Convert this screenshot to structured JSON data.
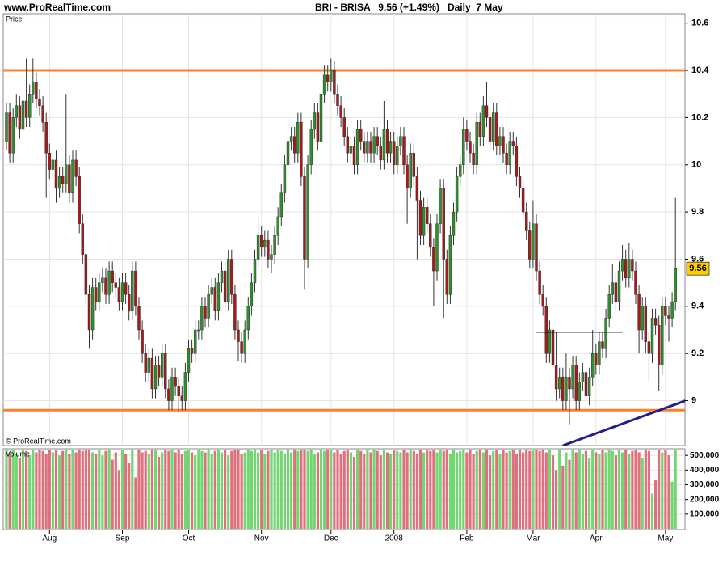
{
  "chart_data": {
    "type": "candlestick",
    "site_label": "www.ProRealTime.com",
    "title": "BRI - BRISA   9.56 (+1.49%)   Daily  7 May",
    "price_label": "Price",
    "copyright": "© ProRealTime.com",
    "volume_label": "Volume",
    "categories": [
      null,
      null,
      null,
      null,
      null,
      null,
      null,
      null,
      null,
      null,
      null,
      null,
      null,
      "Aug",
      null,
      null,
      null,
      null,
      null,
      null,
      null,
      null,
      null,
      null,
      null,
      null,
      null,
      null,
      null,
      null,
      null,
      null,
      null,
      null,
      null,
      "Sep",
      null,
      null,
      null,
      null,
      null,
      null,
      null,
      null,
      null,
      null,
      null,
      null,
      null,
      null,
      null,
      null,
      null,
      null,
      null,
      "Oct",
      null,
      null,
      null,
      null,
      null,
      null,
      null,
      null,
      null,
      null,
      null,
      null,
      null,
      null,
      null,
      null,
      null,
      null,
      null,
      null,
      null,
      "Nov",
      null,
      null,
      null,
      null,
      null,
      null,
      null,
      null,
      null,
      null,
      null,
      null,
      null,
      null,
      null,
      null,
      null,
      null,
      null,
      null,
      "Dec",
      null,
      null,
      null,
      null,
      null,
      null,
      null,
      null,
      null,
      null,
      null,
      null,
      null,
      null,
      null,
      null,
      null,
      null,
      "2008",
      null,
      null,
      null,
      null,
      null,
      null,
      null,
      null,
      null,
      null,
      null,
      null,
      null,
      null,
      null,
      null,
      null,
      null,
      null,
      null,
      null,
      "Feb",
      null,
      null,
      null,
      null,
      null,
      null,
      null,
      null,
      null,
      null,
      null,
      null,
      null,
      null,
      null,
      null,
      null,
      null,
      null,
      "Mar",
      null,
      null,
      null,
      null,
      null,
      null,
      null,
      null,
      null,
      null,
      null,
      null,
      null,
      null,
      null,
      null,
      null,
      null,
      "Apr",
      null,
      null,
      null,
      null,
      null,
      null,
      null,
      null,
      null,
      null,
      null,
      null,
      null,
      null,
      null,
      null,
      null,
      null,
      null,
      null,
      "May",
      null,
      null,
      null
    ],
    "open": [
      10.1,
      10.22,
      10.05,
      10.2,
      10.25,
      10.15,
      10.27,
      10.2,
      10.3,
      10.35,
      10.28,
      10.25,
      10.18,
      10.05,
      9.98,
      10.02,
      9.9,
      9.95,
      9.92,
      10.0,
      9.88,
      10.02,
      9.95,
      9.75,
      9.62,
      9.45,
      9.3,
      9.48,
      9.42,
      9.5,
      9.52,
      9.45,
      9.55,
      9.5,
      9.48,
      9.42,
      9.5,
      9.45,
      9.38,
      9.55,
      9.4,
      9.3,
      9.2,
      9.12,
      9.18,
      9.05,
      9.15,
      9.1,
      9.2,
      9.05,
      9.0,
      9.1,
      9.06,
      9.02,
      9.0,
      9.12,
      9.22,
      9.2,
      9.3,
      9.3,
      9.4,
      9.35,
      9.45,
      9.48,
      9.38,
      9.5,
      9.55,
      9.42,
      9.6,
      9.45,
      9.3,
      9.25,
      9.2,
      9.3,
      9.4,
      9.5,
      9.6,
      9.7,
      9.65,
      9.68,
      9.6,
      9.62,
      9.7,
      9.78,
      9.88,
      10.0,
      10.1,
      10.12,
      10.05,
      10.18,
      9.95,
      9.6,
      10.0,
      10.15,
      10.22,
      10.1,
      10.3,
      10.38,
      10.35,
      10.4,
      10.3,
      10.25,
      10.2,
      10.12,
      10.05,
      10.08,
      10.0,
      10.15,
      10.1,
      10.05,
      10.1,
      10.05,
      10.12,
      10.08,
      10.02,
      10.15,
      10.05,
      10.1,
      10.0,
      10.08,
      10.12,
      10.0,
      9.9,
      10.05,
      9.95,
      9.85,
      9.7,
      9.82,
      9.75,
      9.65,
      9.55,
      9.75,
      9.9,
      9.6,
      9.45,
      9.7,
      9.8,
      9.95,
      10.0,
      10.15,
      10.1,
      10.05,
      10.0,
      10.18,
      10.12,
      10.25,
      10.2,
      10.1,
      10.22,
      10.08,
      10.12,
      10.05,
      10.0,
      10.1,
      10.08,
      9.95,
      9.9,
      9.8,
      9.72,
      9.6,
      9.75,
      9.55,
      9.45,
      9.4,
      9.2,
      9.3,
      9.15,
      9.05,
      9.1,
      9.0,
      9.1,
      9.05,
      9.15,
      9.0,
      9.08,
      9.12,
      9.02,
      9.1,
      9.2,
      9.15,
      9.25,
      9.22,
      9.35,
      9.45,
      9.5,
      9.42,
      9.55,
      9.6,
      9.52,
      9.6,
      9.55,
      9.45,
      9.3,
      9.4,
      9.25,
      9.2,
      9.35,
      9.32,
      9.15,
      9.4,
      9.36,
      9.35,
      9.42
    ],
    "high": [
      10.26,
      10.26,
      10.24,
      10.3,
      10.29,
      10.31,
      10.45,
      10.34,
      10.45,
      10.39,
      10.32,
      10.29,
      10.22,
      10.09,
      10.06,
      10.06,
      9.99,
      9.99,
      10.3,
      10.04,
      10.06,
      10.06,
      9.99,
      9.79,
      9.66,
      9.49,
      9.52,
      9.52,
      9.54,
      9.56,
      9.56,
      9.59,
      9.59,
      9.54,
      9.52,
      9.54,
      9.54,
      9.49,
      9.59,
      9.59,
      9.44,
      9.34,
      9.24,
      9.22,
      9.22,
      9.19,
      9.19,
      9.24,
      9.24,
      9.09,
      9.14,
      9.14,
      9.1,
      9.06,
      9.16,
      9.26,
      9.26,
      9.34,
      9.34,
      9.44,
      9.44,
      9.49,
      9.52,
      9.52,
      9.54,
      9.59,
      9.59,
      9.64,
      9.64,
      9.49,
      9.34,
      9.29,
      9.34,
      9.44,
      9.54,
      9.64,
      9.78,
      9.74,
      9.72,
      9.72,
      9.66,
      9.74,
      9.82,
      9.92,
      10.04,
      10.2,
      10.16,
      10.16,
      10.22,
      10.22,
      9.99,
      10.04,
      10.19,
      10.26,
      10.26,
      10.34,
      10.42,
      10.42,
      10.45,
      10.44,
      10.34,
      10.29,
      10.24,
      10.16,
      10.12,
      10.12,
      10.19,
      10.19,
      10.14,
      10.14,
      10.14,
      10.16,
      10.16,
      10.12,
      10.27,
      10.19,
      10.14,
      10.14,
      10.12,
      10.16,
      10.16,
      10.04,
      10.09,
      10.09,
      9.99,
      9.89,
      9.86,
      9.86,
      9.79,
      9.69,
      9.79,
      9.94,
      9.94,
      9.64,
      9.74,
      9.84,
      9.99,
      10.04,
      10.2,
      10.19,
      10.14,
      10.09,
      10.22,
      10.22,
      10.29,
      10.35,
      10.24,
      10.26,
      10.26,
      10.16,
      10.16,
      10.09,
      10.14,
      10.14,
      10.12,
      9.99,
      9.94,
      9.84,
      9.76,
      9.85,
      9.79,
      9.59,
      9.49,
      9.44,
      9.34,
      9.34,
      9.29,
      9.14,
      9.14,
      9.2,
      9.14,
      9.19,
      9.19,
      9.12,
      9.16,
      9.16,
      9.14,
      9.3,
      9.24,
      9.29,
      9.29,
      9.39,
      9.49,
      9.58,
      9.54,
      9.59,
      9.66,
      9.64,
      9.67,
      9.64,
      9.59,
      9.49,
      9.44,
      9.44,
      9.29,
      9.39,
      9.39,
      9.36,
      9.44,
      9.44,
      9.4,
      9.46,
      9.86
    ],
    "low": [
      10.06,
      10.01,
      10.01,
      10.16,
      10.11,
      10.11,
      10.16,
      10.16,
      10.26,
      10.24,
      10.21,
      10.14,
      9.86,
      9.94,
      9.94,
      9.84,
      9.86,
      9.88,
      9.88,
      9.84,
      9.84,
      9.91,
      9.71,
      9.58,
      9.41,
      9.22,
      9.26,
      9.38,
      9.38,
      9.46,
      9.41,
      9.41,
      9.46,
      9.44,
      9.38,
      9.38,
      9.41,
      9.34,
      9.34,
      9.36,
      9.26,
      9.16,
      9.08,
      9.08,
      9.01,
      9.01,
      9.06,
      9.06,
      9.01,
      8.96,
      8.96,
      9.02,
      8.95,
      8.96,
      8.96,
      9.08,
      9.16,
      9.16,
      9.26,
      9.26,
      9.31,
      9.31,
      9.41,
      9.34,
      9.34,
      9.46,
      9.38,
      9.38,
      9.41,
      9.26,
      9.17,
      9.16,
      9.16,
      9.26,
      9.36,
      9.46,
      9.56,
      9.61,
      9.61,
      9.56,
      9.54,
      9.58,
      9.66,
      9.74,
      9.84,
      9.96,
      10.06,
      10.01,
      10.01,
      9.91,
      9.47,
      9.56,
      9.96,
      10.11,
      10.06,
      10.06,
      10.26,
      10.31,
      10.31,
      10.26,
      10.21,
      10.16,
      10.08,
      10.01,
      10.01,
      9.96,
      9.96,
      10.06,
      10.01,
      10.01,
      10.01,
      10.01,
      10.04,
      9.98,
      9.98,
      10.01,
      10.01,
      9.96,
      9.96,
      10.04,
      9.96,
      9.75,
      9.86,
      9.91,
      9.6,
      9.66,
      9.66,
      9.71,
      9.61,
      9.4,
      9.51,
      9.71,
      9.35,
      9.41,
      9.41,
      9.66,
      9.76,
      9.91,
      9.96,
      10.06,
      10.01,
      9.96,
      9.96,
      10.08,
      10.08,
      10.16,
      10.06,
      10.06,
      10.04,
      10.04,
      10.01,
      9.96,
      9.96,
      10.04,
      9.91,
      9.86,
      9.76,
      9.68,
      9.56,
      9.56,
      9.51,
      9.41,
      9.36,
      9.16,
      9.16,
      9.11,
      9.0,
      9.01,
      8.96,
      8.96,
      8.9,
      9.01,
      8.96,
      8.96,
      9.04,
      8.98,
      8.98,
      9.06,
      9.11,
      9.11,
      9.18,
      9.18,
      9.31,
      9.41,
      9.38,
      9.38,
      9.51,
      9.48,
      9.48,
      9.51,
      9.41,
      9.2,
      9.26,
      9.2,
      9.08,
      9.16,
      9.28,
      9.04,
      9.11,
      9.32,
      9.25,
      9.31,
      9.38
    ],
    "close": [
      10.22,
      10.05,
      10.2,
      10.25,
      10.15,
      10.27,
      10.2,
      10.3,
      10.35,
      10.28,
      10.25,
      10.18,
      10.05,
      9.98,
      10.02,
      9.9,
      9.95,
      9.92,
      10.0,
      9.88,
      10.02,
      9.95,
      9.75,
      9.62,
      9.45,
      9.3,
      9.48,
      9.42,
      9.5,
      9.52,
      9.45,
      9.55,
      9.5,
      9.48,
      9.42,
      9.5,
      9.45,
      9.38,
      9.55,
      9.4,
      9.3,
      9.2,
      9.12,
      9.18,
      9.05,
      9.15,
      9.1,
      9.2,
      9.05,
      9.0,
      9.1,
      9.06,
      9.02,
      9.0,
      9.12,
      9.22,
      9.2,
      9.3,
      9.3,
      9.4,
      9.35,
      9.45,
      9.48,
      9.38,
      9.5,
      9.55,
      9.42,
      9.6,
      9.45,
      9.3,
      9.25,
      9.2,
      9.3,
      9.4,
      9.5,
      9.6,
      9.7,
      9.65,
      9.68,
      9.6,
      9.62,
      9.7,
      9.78,
      9.88,
      10.0,
      10.1,
      10.12,
      10.05,
      10.18,
      9.95,
      9.6,
      10.0,
      10.15,
      10.22,
      10.1,
      10.3,
      10.38,
      10.35,
      10.4,
      10.3,
      10.25,
      10.2,
      10.12,
      10.05,
      10.08,
      10.0,
      10.15,
      10.1,
      10.05,
      10.1,
      10.05,
      10.12,
      10.08,
      10.02,
      10.15,
      10.05,
      10.1,
      10.0,
      10.08,
      10.12,
      10.0,
      9.9,
      10.05,
      9.95,
      9.85,
      9.7,
      9.82,
      9.75,
      9.65,
      9.55,
      9.75,
      9.9,
      9.6,
      9.45,
      9.7,
      9.8,
      9.95,
      10.0,
      10.15,
      10.1,
      10.05,
      10.0,
      10.18,
      10.12,
      10.25,
      10.2,
      10.1,
      10.22,
      10.08,
      10.12,
      10.05,
      10.0,
      10.1,
      10.08,
      9.95,
      9.9,
      9.8,
      9.72,
      9.6,
      9.75,
      9.55,
      9.45,
      9.4,
      9.2,
      9.3,
      9.15,
      9.05,
      9.1,
      9.0,
      9.1,
      9.05,
      9.15,
      9.0,
      9.08,
      9.12,
      9.02,
      9.1,
      9.2,
      9.15,
      9.25,
      9.22,
      9.35,
      9.45,
      9.5,
      9.42,
      9.55,
      9.6,
      9.52,
      9.6,
      9.55,
      9.45,
      9.3,
      9.4,
      9.25,
      9.2,
      9.35,
      9.32,
      9.15,
      9.4,
      9.36,
      9.35,
      9.42,
      9.56
    ],
    "volume": [
      540000,
      520000,
      540000,
      510000,
      480000,
      540000,
      530000,
      500000,
      540000,
      520000,
      540000,
      530000,
      510000,
      540000,
      520000,
      540000,
      500000,
      530000,
      540000,
      510000,
      540000,
      520000,
      540000,
      530000,
      540000,
      540000,
      520000,
      510000,
      540000,
      500000,
      530000,
      540000,
      470000,
      520000,
      400000,
      540000,
      510000,
      450000,
      540000,
      350000,
      540000,
      520000,
      530000,
      510000,
      540000,
      540000,
      490000,
      520000,
      540000,
      530000,
      540000,
      520000,
      540000,
      510000,
      530000,
      540000,
      520000,
      500000,
      540000,
      530000,
      520000,
      540000,
      510000,
      530000,
      540000,
      520000,
      540000,
      500000,
      530000,
      540000,
      540000,
      510000,
      520000,
      540000,
      530000,
      540000,
      520000,
      540000,
      510000,
      530000,
      540000,
      520000,
      540000,
      530000,
      510000,
      540000,
      520000,
      540000,
      530000,
      540000,
      540000,
      530000,
      540000,
      510000,
      520000,
      540000,
      530000,
      540000,
      540000,
      520000,
      540000,
      510000,
      530000,
      540000,
      520000,
      490000,
      540000,
      530000,
      510000,
      540000,
      520000,
      540000,
      530000,
      500000,
      540000,
      520000,
      510000,
      540000,
      530000,
      520000,
      540000,
      520000,
      540000,
      530000,
      510000,
      540000,
      520000,
      540000,
      530000,
      540000,
      520000,
      540000,
      530000,
      540000,
      510000,
      540000,
      520000,
      530000,
      540000,
      520000,
      540000,
      510000,
      530000,
      540000,
      520000,
      540000,
      500000,
      530000,
      540000,
      510000,
      540000,
      520000,
      530000,
      540000,
      510000,
      540000,
      520000,
      540000,
      530000,
      540000,
      540000,
      530000,
      540000,
      520000,
      540000,
      500000,
      400000,
      540000,
      430000,
      520000,
      470000,
      540000,
      520000,
      540000,
      510000,
      530000,
      480000,
      540000,
      520000,
      510000,
      540000,
      520000,
      540000,
      530000,
      500000,
      540000,
      520000,
      540000,
      510000,
      530000,
      540000,
      520000,
      480000,
      540000,
      530000,
      240000,
      330000,
      540000,
      520000,
      540000,
      500000,
      320000,
      540000
    ],
    "ylim": [
      8.81,
      10.64
    ],
    "yticks": [
      9,
      9.2,
      9.4,
      9.6,
      9.8,
      10,
      10.2,
      10.4,
      10.6
    ],
    "volume_ylim": [
      0,
      545000
    ],
    "volume_yticks": [
      {
        "value": 100000,
        "label": "100,000"
      },
      {
        "value": 200000,
        "label": "200,000"
      },
      {
        "value": 300000,
        "label": "300,000"
      },
      {
        "value": 400000,
        "label": "400,000"
      },
      {
        "value": 500000,
        "label": "500,000"
      }
    ],
    "hlines": [
      {
        "value": 10.4,
        "color": "#ff7f2a"
      },
      {
        "value": 8.96,
        "color": "#ff7f2a"
      }
    ],
    "segments": [
      {
        "x": [
          160,
          186
        ],
        "y": [
          9.29,
          9.29
        ],
        "color": "#000000",
        "width": 1
      },
      {
        "x": [
          160,
          186
        ],
        "y": [
          8.99,
          8.99
        ],
        "color": "#000000",
        "width": 1
      },
      {
        "x": [
          168,
          205
        ],
        "y": [
          8.81,
          9.0
        ],
        "color": "#1f1f8f",
        "width": 3
      }
    ],
    "up_color": "#2f8f2f",
    "down_color": "#a31c1c",
    "volume_up_color": "#72d672",
    "volume_down_color": "#e0707e",
    "last_color": "#ffcc00",
    "grid": true
  }
}
